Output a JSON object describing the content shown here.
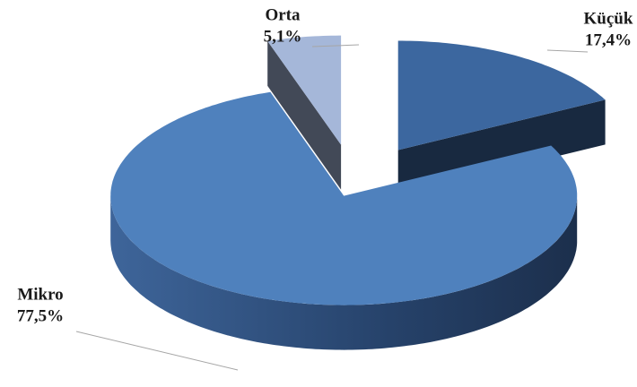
{
  "chart_data": {
    "type": "pie",
    "categories": [
      "Küçük",
      "Mikro",
      "Orta"
    ],
    "values": [
      17.4,
      77.5,
      5.1
    ],
    "value_labels": [
      "17,4%",
      "77,5%",
      "5,1%"
    ],
    "colors": [
      "#3c679f",
      "#4f81bd",
      "#a5b7d9"
    ]
  }
}
